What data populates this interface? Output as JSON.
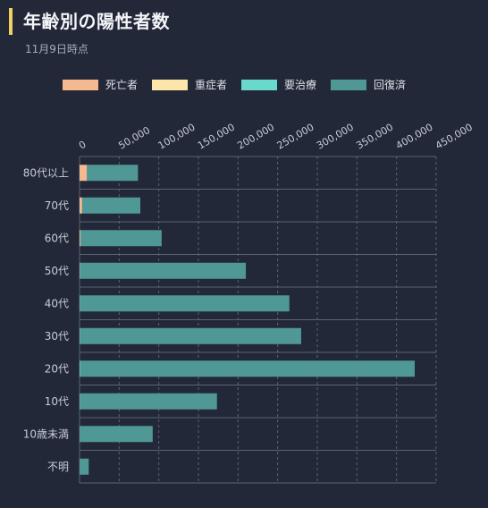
{
  "header": {
    "title": "年齢別の陽性者数",
    "subtitle": "11月9日時点"
  },
  "colors": {
    "background": "#222838",
    "title_accent": "#f2cf63",
    "grid": "#5b6274",
    "axis_text": "#c8ccd6"
  },
  "chart_data": {
    "type": "bar",
    "orientation": "horizontal",
    "stacked": true,
    "categories": [
      "80代以上",
      "70代",
      "60代",
      "50代",
      "40代",
      "30代",
      "20代",
      "10代",
      "10歳未満",
      "不明"
    ],
    "series": [
      {
        "name": "死亡者",
        "color": "#f4b98f",
        "values": [
          9000,
          3000,
          1000,
          300,
          100,
          50,
          20,
          5,
          2,
          50
        ]
      },
      {
        "name": "重症者",
        "color": "#fbe5a8",
        "values": [
          300,
          300,
          200,
          150,
          60,
          40,
          20,
          5,
          2,
          10
        ]
      },
      {
        "name": "要治療",
        "color": "#6ad9cd",
        "values": [
          400,
          400,
          400,
          400,
          600,
          600,
          900,
          400,
          300,
          50
        ]
      },
      {
        "name": "回復済",
        "color": "#4f9895",
        "values": [
          64000,
          73000,
          102000,
          209000,
          264000,
          279000,
          422000,
          173000,
          92000,
          11500
        ]
      }
    ],
    "xlim": [
      0,
      450000
    ],
    "xticks": [
      "0",
      "50,000",
      "100,000",
      "150,000",
      "200,000",
      "250,000",
      "300,000",
      "350,000",
      "400,000",
      "450,000"
    ],
    "legend_position": "top",
    "grid": true
  }
}
